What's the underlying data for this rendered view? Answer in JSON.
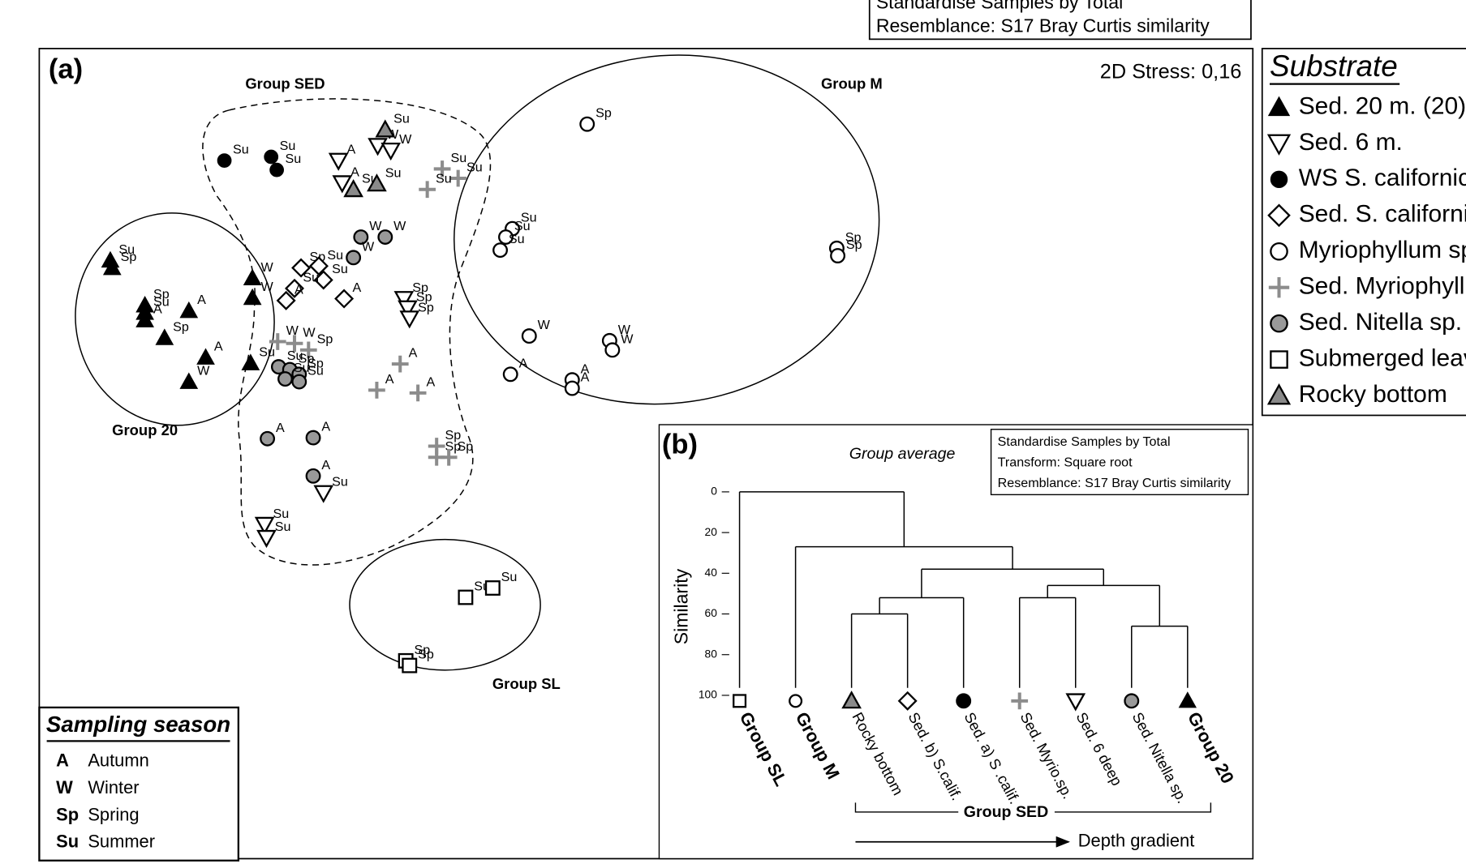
{
  "chart_data": [
    {
      "type": "scatter",
      "panel_label": "(a)",
      "annotation": "2D Stress: 0,16",
      "legend_title": "Substrate",
      "note_lines": [
        "Standardise Samples by Total",
        "Resemblance: S17 Bray Curtis similarity"
      ],
      "group_labels": [
        "Group SED",
        "Group M",
        "Group 20",
        "Group SL"
      ],
      "season_legend": {
        "title": "Sampling season",
        "keys": [
          "A",
          "W",
          "Sp",
          "Su"
        ],
        "names": [
          "Autumn",
          "Winter",
          "Spring",
          "Summer"
        ]
      },
      "xlim": [
        0,
        1298
      ],
      "ylim": [
        0,
        868
      ],
      "series": [
        {
          "name": "Sed. 20 m. (20)",
          "marker": "triangle",
          "color": "#000000",
          "edge": "#000000",
          "x": [
            76,
            78,
            113,
            113,
            113,
            134,
            160,
            178,
            160,
            228,
            228,
            226
          ],
          "values": [
            641,
            633,
            593,
            585,
            577,
            558,
            587,
            537,
            511,
            622,
            601,
            531
          ],
          "point_labels": [
            "Su",
            "Sp",
            "Sp",
            "Su",
            "A",
            "Sp",
            "A",
            "A",
            "W",
            "W",
            "W",
            "Su"
          ]
        },
        {
          "name": "Sed. 6 m.",
          "marker": "triangle-down",
          "color": "#ffffff",
          "edge": "#000000",
          "x": [
            320,
            324,
            362,
            376,
            390,
            394,
            396,
            304,
            241,
            243
          ],
          "values": [
            748,
            724,
            764,
            759,
            600,
            590,
            579,
            392,
            358,
            344
          ],
          "point_labels": [
            "A",
            "A",
            "W",
            "W",
            "Sp",
            "Sp",
            "Sp",
            "Su",
            "Su",
            "Su"
          ]
        },
        {
          "name": "WS S. californica",
          "marker": "circle",
          "color": "#000000",
          "edge": "#000000",
          "x": [
            198,
            248,
            254
          ],
          "values": [
            748,
            752,
            738
          ],
          "point_labels": [
            "Su",
            "Su",
            "Su"
          ]
        },
        {
          "name": "Sed. S. californica",
          "marker": "diamond",
          "color": "#ffffff",
          "edge": "#000000",
          "x": [
            280,
            299,
            304,
            273,
            264,
            326
          ],
          "values": [
            633,
            635,
            620,
            611,
            598,
            600
          ],
          "point_labels": [
            "Sp",
            "Su",
            "Su",
            "Su",
            "A",
            "A"
          ]
        },
        {
          "name": "Myriophyllum sp.",
          "marker": "circle",
          "color": "#ffffff",
          "edge": "#000000",
          "x": [
            586,
            506,
            499,
            493,
            853,
            854,
            524,
            610,
            613,
            504,
            570,
            570
          ],
          "values": [
            787,
            675,
            666,
            652,
            654,
            646,
            560,
            555,
            545,
            519,
            513,
            504
          ],
          "point_labels": [
            "Sp",
            "Su",
            "Su",
            "Su",
            "Sp",
            "Sp",
            "W",
            "W",
            "W",
            "A",
            "A",
            "A"
          ]
        },
        {
          "name": "Sed. Myriophyllum sp.",
          "marker": "plus",
          "color": "#8c8c8c",
          "edge": "#8c8c8c",
          "x": [
            431,
            448,
            415,
            255,
            273,
            288,
            386,
            361,
            405,
            425,
            425,
            438
          ],
          "values": [
            739,
            729,
            717,
            554,
            552,
            545,
            530,
            502,
            499,
            442,
            430,
            430
          ],
          "point_labels": [
            "Su",
            "Su",
            "Su",
            "W",
            "W",
            "Sp",
            "A",
            "A",
            "A",
            "Sp",
            "Sp",
            "Sp"
          ]
        },
        {
          "name": "Sed. Nitella sp.",
          "marker": "circle",
          "color": "#999999",
          "edge": "#000000",
          "x": [
            344,
            370,
            336,
            256,
            268,
            278,
            263,
            278,
            244,
            293,
            293
          ],
          "values": [
            666,
            666,
            644,
            527,
            524,
            519,
            514,
            511,
            450,
            451,
            410
          ],
          "point_labels": [
            "W",
            "W",
            "W",
            "Su",
            "Sp",
            "Sp",
            "Su",
            "Su",
            "A",
            "A",
            "A"
          ]
        },
        {
          "name": "Submerged leaves",
          "marker": "square",
          "color": "#ffffff",
          "edge": "#000000",
          "x": [
            456,
            485,
            392,
            396
          ],
          "values": [
            280,
            290,
            212,
            207
          ],
          "point_labels": [
            "Su",
            "Su",
            "Sp",
            "Sp"
          ]
        },
        {
          "name": "Rocky bottom",
          "marker": "triangle",
          "color": "#8a8a8a",
          "edge": "#000000",
          "x": [
            370,
            336,
            361
          ],
          "values": [
            781,
            717,
            723
          ],
          "point_labels": [
            "Su",
            "Su",
            "Su"
          ]
        }
      ]
    },
    {
      "type": "dendrogram",
      "panel_label": "(b)",
      "subtitle": "Group average",
      "note_lines": [
        "Standardise Samples by Total",
        "Transform: Square root",
        "Resemblance: S17 Bray Curtis similarity"
      ],
      "ylabel": "Similarity",
      "ylim": [
        0,
        100
      ],
      "yticks": [
        0,
        20,
        40,
        60,
        80,
        100
      ],
      "leaves": [
        {
          "label": "Group SL",
          "marker": "square",
          "color": "#ffffff",
          "bold": true
        },
        {
          "label": "Group M",
          "marker": "circle",
          "color": "#ffffff",
          "bold": true
        },
        {
          "label": "Rocky bottom",
          "marker": "triangle",
          "color": "#8a8a8a",
          "bold": false
        },
        {
          "label": "Sed. b) S.calif.",
          "marker": "diamond",
          "color": "#ffffff",
          "bold": false
        },
        {
          "label": "Sed. a) S .calif.",
          "marker": "circle",
          "color": "#000000",
          "bold": false
        },
        {
          "label": "Sed. Myrio.sp.",
          "marker": "plus",
          "color": "#8c8c8c",
          "bold": false
        },
        {
          "label": "Sed. 6 deep",
          "marker": "triangle-down",
          "color": "#ffffff",
          "bold": false
        },
        {
          "label": "Sed. Nitella sp.",
          "marker": "circle",
          "color": "#999999",
          "bold": false
        },
        {
          "label": "Group 20",
          "marker": "triangle",
          "color": "#000000",
          "bold": true
        }
      ],
      "merges": [
        {
          "a": 2,
          "b": 3,
          "height": 60
        },
        {
          "a": 9,
          "b": 4,
          "height": 52
        },
        {
          "a": 7,
          "b": 8,
          "height": 66
        },
        {
          "a": 5,
          "b": 6,
          "height": 52
        },
        {
          "a": 12,
          "b": 11,
          "height": 46
        },
        {
          "a": 10,
          "b": 13,
          "height": 38
        },
        {
          "a": 1,
          "b": 14,
          "height": 27
        },
        {
          "a": 0,
          "b": 15,
          "height": 0
        }
      ],
      "bracket_label": "Group SED",
      "arrow_label": "Depth gradient"
    }
  ]
}
